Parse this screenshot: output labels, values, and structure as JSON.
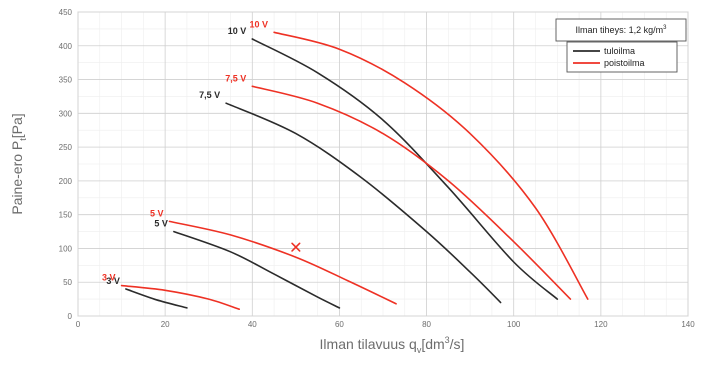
{
  "chart_data": {
    "type": "line",
    "xlabel": {
      "main": "Ilman tilavuus q",
      "sub": "v",
      "bracket": "[dm",
      "sup": "3",
      "tail": "/s]"
    },
    "ylabel": {
      "main": "Paine-ero P",
      "sub": "t",
      "tail": "[Pa]"
    },
    "xlim": [
      0,
      140
    ],
    "ylim": [
      0,
      450
    ],
    "xticks": [
      0,
      20,
      40,
      60,
      80,
      100,
      120,
      140
    ],
    "yticks": [
      0,
      50,
      100,
      150,
      200,
      250,
      300,
      350,
      400,
      450
    ],
    "x_minor_step": 5,
    "y_minor_step": 25,
    "grid": true,
    "density_note": {
      "text": "Ilman tiheys: 1,2 kg/m",
      "sup": "3"
    },
    "legend": {
      "placement": "top-right",
      "entries": [
        {
          "name": "tuloilma",
          "color": "#2b2b2b"
        },
        {
          "name": "poistoilma",
          "color": "#ee3124"
        }
      ]
    },
    "series": [
      {
        "name": "tuloilma",
        "label": "10 V",
        "color": "#2b2b2b",
        "points": [
          [
            40,
            410
          ],
          [
            55,
            360
          ],
          [
            70,
            290
          ],
          [
            85,
            190
          ],
          [
            100,
            80
          ],
          [
            110,
            25
          ]
        ]
      },
      {
        "name": "tuloilma",
        "label": "7,5 V",
        "color": "#2b2b2b",
        "points": [
          [
            34,
            315
          ],
          [
            50,
            270
          ],
          [
            65,
            205
          ],
          [
            80,
            125
          ],
          [
            90,
            65
          ],
          [
            97,
            20
          ]
        ]
      },
      {
        "name": "tuloilma",
        "label": "5 V",
        "color": "#2b2b2b",
        "points": [
          [
            22,
            125
          ],
          [
            35,
            95
          ],
          [
            45,
            62
          ],
          [
            55,
            28
          ],
          [
            60,
            12
          ]
        ]
      },
      {
        "name": "tuloilma",
        "label": "3 V",
        "color": "#2b2b2b",
        "points": [
          [
            11,
            40
          ],
          [
            18,
            24
          ],
          [
            25,
            12
          ]
        ]
      },
      {
        "name": "poistoilma",
        "label": "10 V",
        "color": "#ee3124",
        "points": [
          [
            45,
            420
          ],
          [
            60,
            395
          ],
          [
            75,
            345
          ],
          [
            90,
            270
          ],
          [
            105,
            160
          ],
          [
            117,
            25
          ]
        ]
      },
      {
        "name": "poistoilma",
        "label": "7,5 V",
        "color": "#ee3124",
        "points": [
          [
            40,
            340
          ],
          [
            55,
            315
          ],
          [
            70,
            270
          ],
          [
            85,
            200
          ],
          [
            100,
            110
          ],
          [
            113,
            25
          ]
        ]
      },
      {
        "name": "poistoilma",
        "label": "5 V",
        "color": "#ee3124",
        "points": [
          [
            21,
            140
          ],
          [
            35,
            120
          ],
          [
            50,
            87
          ],
          [
            62,
            52
          ],
          [
            73,
            18
          ]
        ]
      },
      {
        "name": "poistoilma",
        "label": "3 V",
        "color": "#ee3124",
        "points": [
          [
            10,
            45
          ],
          [
            20,
            38
          ],
          [
            30,
            25
          ],
          [
            37,
            10
          ]
        ]
      }
    ],
    "curve_labels": [
      {
        "text": "10 V",
        "color": "#2b2b2b",
        "anchor": [
          40,
          410
        ]
      },
      {
        "text": "7,5 V",
        "color": "#2b2b2b",
        "anchor": [
          34,
          315
        ]
      },
      {
        "text": "5 V",
        "color": "#2b2b2b",
        "anchor": [
          22,
          125
        ]
      },
      {
        "text": "3 V",
        "color": "#2b2b2b",
        "anchor": [
          11,
          40
        ]
      },
      {
        "text": "10 V",
        "color": "#ee3124",
        "anchor": [
          45,
          420
        ]
      },
      {
        "text": "7,5 V",
        "color": "#ee3124",
        "anchor": [
          40,
          340
        ]
      },
      {
        "text": "5 V",
        "color": "#ee3124",
        "anchor": [
          21,
          140
        ]
      },
      {
        "text": "3 V",
        "color": "#ee3124",
        "anchor": [
          10,
          45
        ]
      }
    ],
    "marker": {
      "type": "x",
      "color": "#ee3124",
      "x": 50,
      "y": 102
    }
  }
}
